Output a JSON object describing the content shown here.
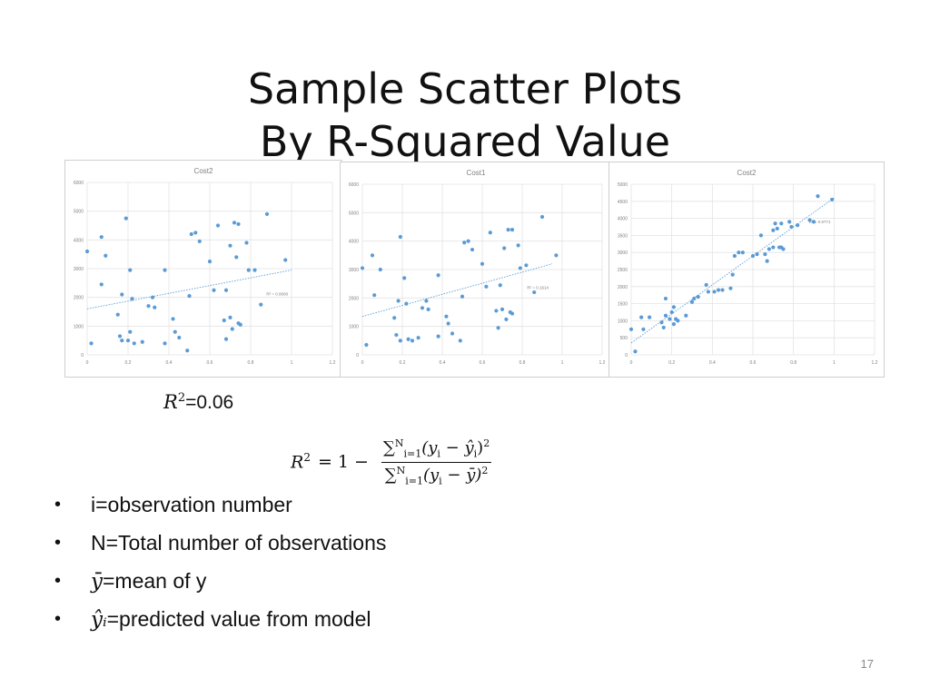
{
  "title": {
    "line1": "Sample Scatter Plots",
    "line2": "By R-Squared Value"
  },
  "chart_data": [
    {
      "type": "scatter",
      "title": "Cost2",
      "xlim": [
        0,
        1.2
      ],
      "ylim": [
        0,
        6000
      ],
      "xticks": [
        "0",
        "0.2",
        "0.4",
        "0.6",
        "0.8",
        "1",
        "1.2"
      ],
      "xtick_values": [
        0,
        0.2,
        0.4,
        0.6,
        0.8,
        1.0,
        1.2
      ],
      "yticks": [
        "0",
        "1000",
        "2000",
        "3000",
        "4000",
        "5000",
        "6000"
      ],
      "ytick_values": [
        0,
        1000,
        2000,
        3000,
        4000,
        5000,
        6000
      ],
      "grid": true,
      "color": "#5b9bd5",
      "trendline": {
        "x": [
          0,
          1.0
        ],
        "y": [
          1600,
          2950
        ],
        "label": "R² = 0.0608"
      },
      "points": [
        [
          0.0,
          3600
        ],
        [
          0.02,
          400
        ],
        [
          0.07,
          4100
        ],
        [
          0.07,
          2450
        ],
        [
          0.09,
          3450
        ],
        [
          0.15,
          1400
        ],
        [
          0.16,
          650
        ],
        [
          0.17,
          2100
        ],
        [
          0.17,
          500
        ],
        [
          0.19,
          4750
        ],
        [
          0.2,
          500
        ],
        [
          0.21,
          2950
        ],
        [
          0.21,
          800
        ],
        [
          0.22,
          1950
        ],
        [
          0.23,
          400
        ],
        [
          0.27,
          450
        ],
        [
          0.3,
          1700
        ],
        [
          0.32,
          2000
        ],
        [
          0.33,
          1650
        ],
        [
          0.38,
          2950
        ],
        [
          0.38,
          400
        ],
        [
          0.42,
          1250
        ],
        [
          0.43,
          800
        ],
        [
          0.45,
          600
        ],
        [
          0.49,
          150
        ],
        [
          0.5,
          2050
        ],
        [
          0.51,
          4200
        ],
        [
          0.53,
          4250
        ],
        [
          0.55,
          3950
        ],
        [
          0.6,
          3250
        ],
        [
          0.62,
          2250
        ],
        [
          0.64,
          4500
        ],
        [
          0.67,
          1200
        ],
        [
          0.68,
          550
        ],
        [
          0.68,
          2250
        ],
        [
          0.7,
          1300
        ],
        [
          0.7,
          3800
        ],
        [
          0.71,
          900
        ],
        [
          0.72,
          4600
        ],
        [
          0.73,
          3400
        ],
        [
          0.74,
          4550
        ],
        [
          0.74,
          1100
        ],
        [
          0.75,
          1050
        ],
        [
          0.78,
          3900
        ],
        [
          0.79,
          2950
        ],
        [
          0.82,
          2950
        ],
        [
          0.85,
          1750
        ],
        [
          0.88,
          4900
        ],
        [
          0.97,
          3300
        ]
      ]
    },
    {
      "type": "scatter",
      "title": "Cost1",
      "xlim": [
        0,
        1.2
      ],
      "ylim": [
        0,
        6000
      ],
      "xticks": [
        "0",
        "0.2",
        "0.4",
        "0.6",
        "0.8",
        "1",
        "1.2"
      ],
      "xtick_values": [
        0,
        0.2,
        0.4,
        0.6,
        0.8,
        1.0,
        1.2
      ],
      "yticks": [
        "0",
        "1000",
        "2000",
        "3000",
        "4000",
        "5000",
        "6000"
      ],
      "ytick_values": [
        0,
        1000,
        2000,
        3000,
        4000,
        5000,
        6000
      ],
      "grid": true,
      "color": "#5b9bd5",
      "trendline": {
        "x": [
          0,
          0.95
        ],
        "y": [
          1350,
          3200
        ],
        "label": "R² = 0.1614"
      },
      "points": [
        [
          0.0,
          3050
        ],
        [
          0.02,
          350
        ],
        [
          0.05,
          3500
        ],
        [
          0.06,
          2100
        ],
        [
          0.09,
          3000
        ],
        [
          0.16,
          1300
        ],
        [
          0.17,
          700
        ],
        [
          0.18,
          1900
        ],
        [
          0.19,
          4150
        ],
        [
          0.19,
          500
        ],
        [
          0.21,
          2700
        ],
        [
          0.22,
          1800
        ],
        [
          0.23,
          550
        ],
        [
          0.25,
          500
        ],
        [
          0.28,
          600
        ],
        [
          0.3,
          1650
        ],
        [
          0.32,
          1900
        ],
        [
          0.33,
          1600
        ],
        [
          0.38,
          2800
        ],
        [
          0.38,
          650
        ],
        [
          0.42,
          1350
        ],
        [
          0.43,
          1100
        ],
        [
          0.45,
          750
        ],
        [
          0.49,
          500
        ],
        [
          0.5,
          2050
        ],
        [
          0.51,
          3950
        ],
        [
          0.53,
          4000
        ],
        [
          0.55,
          3700
        ],
        [
          0.6,
          3200
        ],
        [
          0.62,
          2400
        ],
        [
          0.64,
          4300
        ],
        [
          0.67,
          1550
        ],
        [
          0.68,
          950
        ],
        [
          0.69,
          2450
        ],
        [
          0.7,
          1600
        ],
        [
          0.71,
          3750
        ],
        [
          0.72,
          1250
        ],
        [
          0.73,
          4400
        ],
        [
          0.74,
          1500
        ],
        [
          0.75,
          4400
        ],
        [
          0.75,
          1450
        ],
        [
          0.78,
          3850
        ],
        [
          0.79,
          3050
        ],
        [
          0.82,
          3150
        ],
        [
          0.86,
          2200
        ],
        [
          0.9,
          4850
        ],
        [
          0.97,
          3500
        ]
      ]
    },
    {
      "type": "scatter",
      "title": "Cost2",
      "xlim": [
        0,
        1.2
      ],
      "ylim": [
        0,
        5000
      ],
      "xticks": [
        "0",
        "0.2",
        "0.4",
        "0.6",
        "0.8",
        "1",
        "1.2"
      ],
      "xtick_values": [
        0,
        0.2,
        0.4,
        0.6,
        0.8,
        1.0,
        1.2
      ],
      "yticks": [
        "0",
        "500",
        "1000",
        "1500",
        "2000",
        "2500",
        "3000",
        "3500",
        "4000",
        "4500",
        "5000"
      ],
      "ytick_values": [
        0,
        500,
        1000,
        1500,
        2000,
        2500,
        3000,
        3500,
        4000,
        4500,
        5000
      ],
      "grid": true,
      "color": "#5b9bd5",
      "trendline": {
        "x": [
          0,
          1.0
        ],
        "y": [
          350,
          4600
        ],
        "label": "R² = 0.9771"
      },
      "points": [
        [
          0.0,
          750
        ],
        [
          0.02,
          100
        ],
        [
          0.05,
          1100
        ],
        [
          0.06,
          750
        ],
        [
          0.09,
          1100
        ],
        [
          0.15,
          950
        ],
        [
          0.16,
          800
        ],
        [
          0.17,
          1150
        ],
        [
          0.17,
          1650
        ],
        [
          0.19,
          1050
        ],
        [
          0.2,
          1250
        ],
        [
          0.21,
          900
        ],
        [
          0.21,
          1400
        ],
        [
          0.22,
          1050
        ],
        [
          0.23,
          1000
        ],
        [
          0.27,
          1150
        ],
        [
          0.3,
          1550
        ],
        [
          0.31,
          1650
        ],
        [
          0.33,
          1700
        ],
        [
          0.37,
          2050
        ],
        [
          0.38,
          1850
        ],
        [
          0.41,
          1850
        ],
        [
          0.43,
          1900
        ],
        [
          0.45,
          1900
        ],
        [
          0.49,
          1950
        ],
        [
          0.5,
          2350
        ],
        [
          0.51,
          2900
        ],
        [
          0.53,
          3000
        ],
        [
          0.55,
          3000
        ],
        [
          0.6,
          2900
        ],
        [
          0.62,
          2950
        ],
        [
          0.64,
          3500
        ],
        [
          0.66,
          2950
        ],
        [
          0.67,
          2750
        ],
        [
          0.68,
          3100
        ],
        [
          0.7,
          3150
        ],
        [
          0.7,
          3650
        ],
        [
          0.71,
          3850
        ],
        [
          0.72,
          3700
        ],
        [
          0.73,
          3150
        ],
        [
          0.74,
          3850
        ],
        [
          0.74,
          3150
        ],
        [
          0.75,
          3100
        ],
        [
          0.78,
          3900
        ],
        [
          0.79,
          3750
        ],
        [
          0.82,
          3800
        ],
        [
          0.88,
          3950
        ],
        [
          0.9,
          3900
        ],
        [
          0.92,
          4650
        ],
        [
          0.99,
          4550
        ]
      ]
    }
  ],
  "r2_caption": {
    "symbol": "R",
    "exponent": "2",
    "value": "=0.06"
  },
  "formula": {
    "lhs": "R",
    "lhs_exp": "2",
    "eq": "= 1 −",
    "sum_top": "N",
    "sum_bottom": "i=1",
    "num_body": "(y",
    "num_sub": "i",
    "num_minus": " − ŷ",
    "num_sub2": "i",
    "num_close": ")",
    "num_exp": "2",
    "den_body": "(y",
    "den_sub": "i",
    "den_minus": " − ȳ)",
    "den_exp": "2"
  },
  "bullets": [
    {
      "sym": "",
      "text": "i=observation number"
    },
    {
      "sym": "",
      "text": "N=Total number of observations"
    },
    {
      "sym": "ȳ",
      "text": "=mean of y"
    },
    {
      "sym": "ŷᵢ",
      "text": "=predicted value from model"
    }
  ],
  "page_number": "17"
}
